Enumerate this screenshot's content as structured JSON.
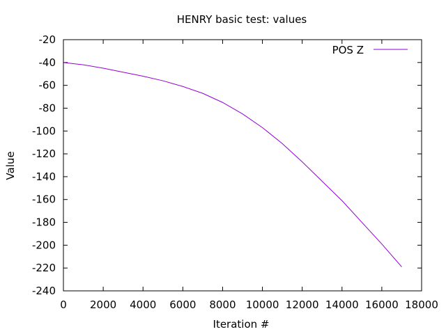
{
  "chart_data": {
    "type": "line",
    "title": "HENRY basic test: values",
    "xlabel": "Iteration #",
    "ylabel": "Value",
    "xlim": [
      0,
      18000
    ],
    "ylim": [
      -240,
      -20
    ],
    "x_ticks": [
      0,
      2000,
      4000,
      6000,
      8000,
      10000,
      12000,
      14000,
      16000,
      18000
    ],
    "y_ticks": [
      -20,
      -40,
      -60,
      -80,
      -100,
      -120,
      -140,
      -160,
      -180,
      -200,
      -220,
      -240
    ],
    "grid": false,
    "legend_position": "top-right",
    "series": [
      {
        "name": "POS Z",
        "color": "#9400d3",
        "x": [
          0,
          1000,
          2000,
          3000,
          4000,
          5000,
          6000,
          7000,
          8000,
          9000,
          10000,
          11000,
          12000,
          13000,
          14000,
          15000,
          16000,
          17000
        ],
        "y": [
          -40,
          -42,
          -45,
          -48.5,
          -52,
          -56,
          -61,
          -67,
          -75,
          -85,
          -97,
          -111,
          -127,
          -144,
          -161,
          -180,
          -199,
          -219
        ]
      }
    ]
  }
}
